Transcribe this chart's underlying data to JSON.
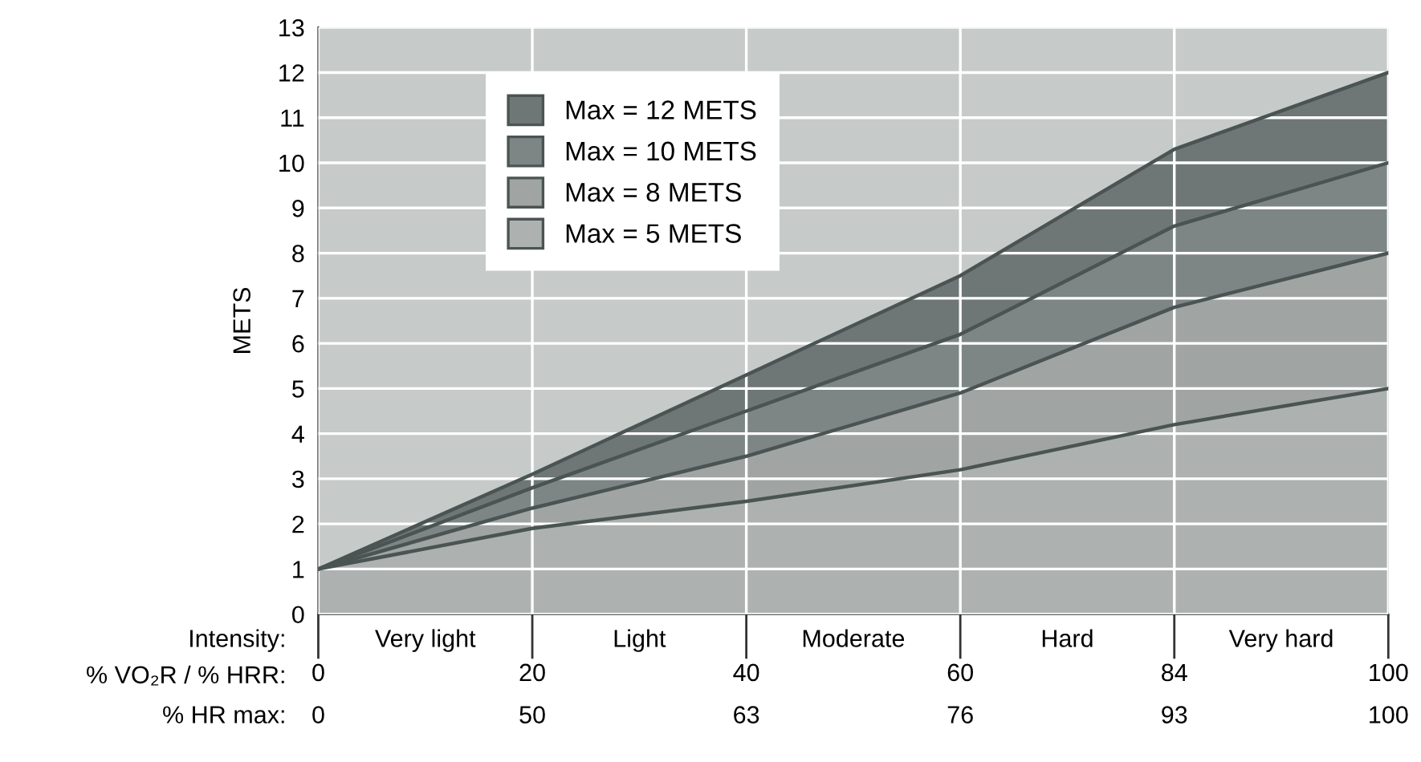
{
  "chart_data": {
    "type": "area",
    "categories": [
      "0",
      "20",
      "40",
      "60",
      "84",
      "100"
    ],
    "xlabel": "% VO₂R / % HRR:",
    "ylabel": "METS",
    "ylim": [
      0,
      13
    ],
    "yticks": [
      0,
      1,
      2,
      3,
      4,
      5,
      6,
      7,
      8,
      9,
      10,
      11,
      12,
      13
    ],
    "grid": true,
    "legend": "top left",
    "series": [
      {
        "name": "Max = 12 METS",
        "color": "#6f7776",
        "values": [
          1,
          3.1,
          5.3,
          7.5,
          10.3,
          12
        ]
      },
      {
        "name": "Max = 10 METS",
        "color": "#7e8685",
        "values": [
          1,
          2.8,
          4.5,
          6.2,
          8.6,
          10
        ]
      },
      {
        "name": "Max = 8 METS",
        "color": "#a0a5a4",
        "values": [
          1,
          2.35,
          3.5,
          4.9,
          6.8,
          8
        ]
      },
      {
        "name": "Max = 5 METS",
        "color": "#adb2b1",
        "values": [
          1,
          1.9,
          2.5,
          3.2,
          4.2,
          5
        ]
      }
    ],
    "annotations": [
      "Intensity:",
      "Very light",
      "Light",
      "Moderate",
      "Hard",
      "Very hard",
      "% HR max:",
      "0",
      "50",
      "63",
      "76",
      "93",
      "100"
    ]
  }
}
